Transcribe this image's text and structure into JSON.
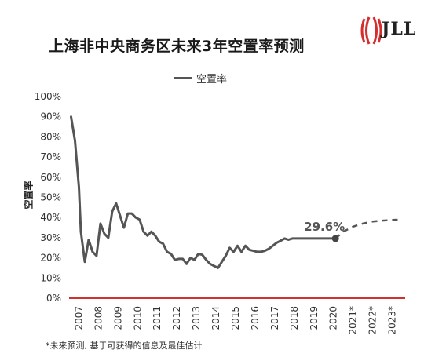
{
  "header": {
    "title": "上海非中央商务区未来3年空置率预测",
    "brand": "JLL"
  },
  "legend": {
    "label": "空置率"
  },
  "axis": {
    "ylabel": "空置率"
  },
  "footnote": "*未来预测, 基于可获得的信息及最佳估计",
  "colors": {
    "actual_line": "#555555",
    "forecast_line": "#555555",
    "baseline": "#d32f2f",
    "brand": "#d32f2f"
  },
  "chart_data": {
    "type": "line",
    "title": "上海非中央商务区未来3年空置率预测",
    "xlabel": "",
    "ylabel": "空置率",
    "ylim": [
      0,
      100
    ],
    "yticks": [
      "0%",
      "10%",
      "20%",
      "30%",
      "40%",
      "50%",
      "60%",
      "70%",
      "80%",
      "90%",
      "100%"
    ],
    "categories": [
      "2007",
      "2008",
      "2009",
      "2010",
      "2011",
      "2012",
      "2013",
      "2014",
      "2015",
      "2016",
      "2017",
      "2018",
      "2019",
      "2020",
      "2021*",
      "2022*",
      "2023*"
    ],
    "grid": false,
    "legend_position": "top",
    "series": [
      {
        "name": "空置率",
        "style": "solid",
        "x": [
          2006.6,
          2006.8,
          2007.0,
          2007.1,
          2007.3,
          2007.5,
          2007.7,
          2007.9,
          2008.1,
          2008.3,
          2008.5,
          2008.7,
          2008.9,
          2009.1,
          2009.3,
          2009.5,
          2009.7,
          2009.9,
          2010.1,
          2010.3,
          2010.5,
          2010.7,
          2010.9,
          2011.1,
          2011.3,
          2011.5,
          2011.7,
          2011.9,
          2012.1,
          2012.3,
          2012.5,
          2012.7,
          2012.9,
          2013.1,
          2013.3,
          2013.5,
          2013.7,
          2013.9,
          2014.1,
          2014.3,
          2014.5,
          2014.7,
          2014.9,
          2015.1,
          2015.3,
          2015.5,
          2015.7,
          2015.9,
          2016.1,
          2016.3,
          2016.5,
          2016.7,
          2016.9,
          2017.1,
          2017.3,
          2017.5,
          2017.7,
          2017.9,
          2018.1,
          2018.3,
          2018.5,
          2018.7,
          2018.9,
          2019.1,
          2019.3,
          2019.5,
          2019.7,
          2019.9,
          2020.1
        ],
        "values": [
          90,
          78,
          55,
          33,
          18,
          29,
          23,
          21,
          37,
          32,
          30,
          43,
          47,
          41,
          35,
          42,
          42,
          40,
          39,
          33,
          31,
          33,
          31,
          28,
          27,
          23,
          22,
          19,
          19.5,
          19.5,
          17,
          20,
          19,
          22,
          21.5,
          19,
          17,
          16,
          15,
          18,
          21,
          25,
          23,
          26,
          23,
          26,
          24,
          23.5,
          23,
          23,
          23.5,
          24.5,
          26,
          27.5,
          28.5,
          29.6,
          29,
          29.6,
          29.6,
          29.6,
          29.6,
          29.6,
          29.6,
          29.6,
          29.6,
          29.6,
          29.6,
          29.6,
          29.6
        ]
      },
      {
        "name": "",
        "style": "dashed",
        "x": [
          2020.1,
          2020.5,
          2021.0,
          2021.5,
          2022.0,
          2022.5,
          2023.0,
          2023.5
        ],
        "values": [
          29.6,
          33,
          35.5,
          37,
          38,
          38.5,
          38.8,
          39
        ]
      }
    ],
    "annotations": [
      {
        "label": "29.6%",
        "x": 2020.1,
        "y": 29.6
      }
    ]
  }
}
